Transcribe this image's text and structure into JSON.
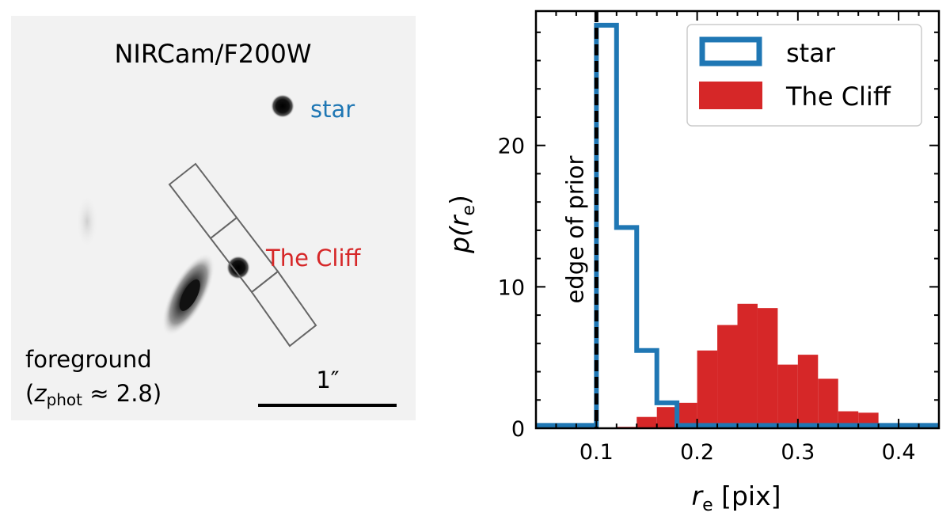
{
  "image_panel": {
    "title": "NIRCam/F200W",
    "star_label": "star",
    "cliff_label": "The Cliff",
    "foreground_line1": "foreground",
    "foreground_z": "z",
    "foreground_sub": "phot",
    "foreground_rest": " ≈ 2.8)",
    "foreground_open": "(",
    "scalebar_label": "1″"
  },
  "colors": {
    "star": "#1f77b4",
    "cliff": "#d62728",
    "background": "#f2f2f2",
    "slit": "#666666"
  },
  "chart_data": {
    "type": "histogram",
    "xlabel_main": "r",
    "xlabel_sub": "e",
    "xlabel_unit": " [pix]",
    "ylabel_main": "p(r",
    "ylabel_sub": "e",
    "ylabel_close": ")",
    "xlim": [
      0.04,
      0.44
    ],
    "ylim": [
      0,
      29.5
    ],
    "xticks": [
      0.1,
      0.2,
      0.3,
      0.4
    ],
    "xtick_labels": [
      "0.1",
      "0.2",
      "0.3",
      "0.4"
    ],
    "yticks": [
      0,
      10,
      20
    ],
    "ytick_labels": [
      "0",
      "10",
      "20"
    ],
    "bin_edges": [
      0.04,
      0.06,
      0.08,
      0.1,
      0.12,
      0.14,
      0.16,
      0.18,
      0.2,
      0.22,
      0.24,
      0.26,
      0.28,
      0.3,
      0.32,
      0.34,
      0.36,
      0.38,
      0.4,
      0.42,
      0.44
    ],
    "vline_x": 0.1,
    "vline_label": "edge of prior",
    "series": [
      {
        "name": "star",
        "style": "step",
        "values": [
          0.2,
          0.2,
          0.2,
          28.5,
          14.2,
          5.5,
          1.8,
          0.2,
          0.2,
          0.2,
          0.2,
          0.2,
          0.2,
          0.2,
          0.2,
          0.2,
          0.2,
          0.2,
          0.2,
          0.2
        ]
      },
      {
        "name": "The Cliff",
        "style": "filled",
        "values": [
          0,
          0,
          0,
          0,
          0.1,
          0.8,
          1.5,
          1.8,
          5.5,
          7.3,
          8.8,
          8.5,
          4.5,
          5.2,
          3.5,
          1.2,
          1.1,
          0.3,
          0.2,
          0
        ]
      }
    ],
    "legend": [
      "star",
      "The Cliff"
    ],
    "legend_position": "top-right"
  }
}
